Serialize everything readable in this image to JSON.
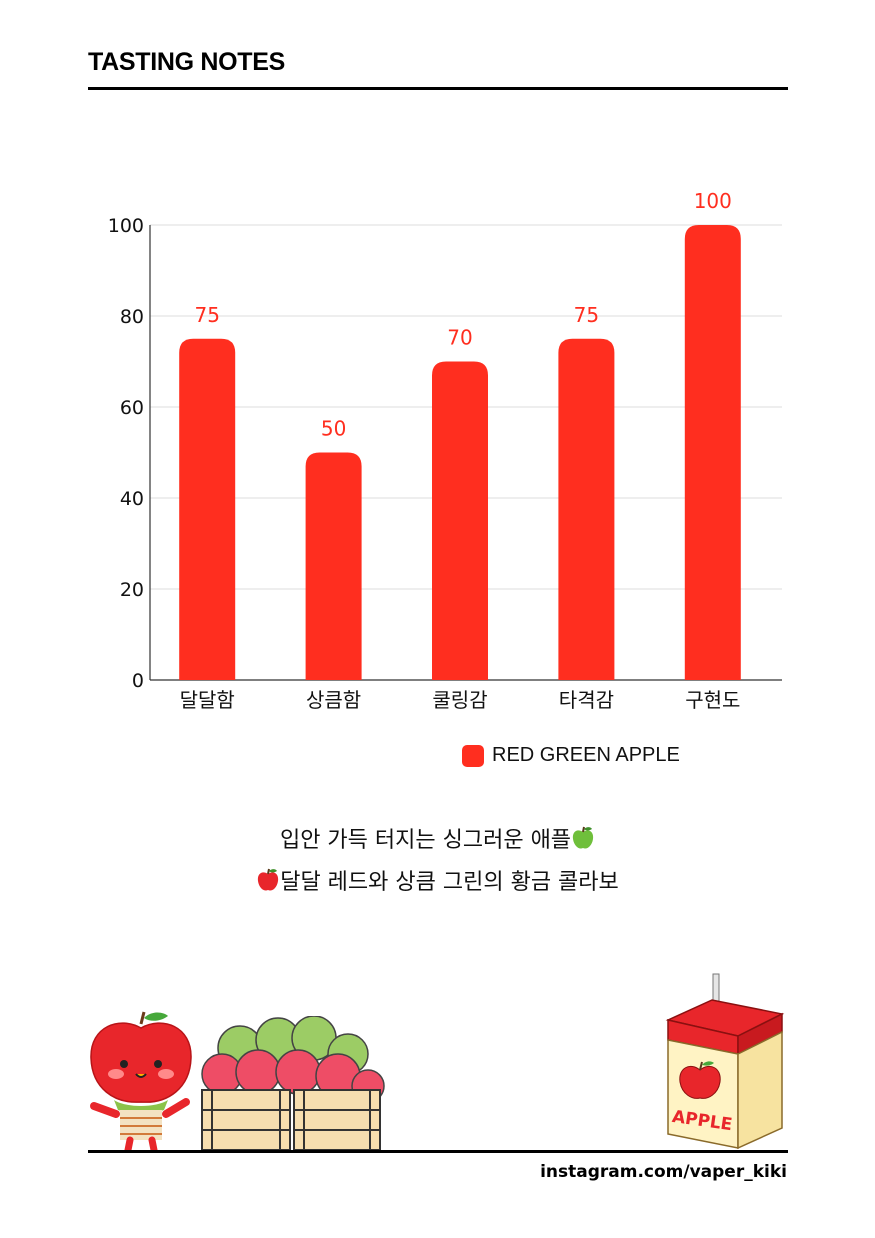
{
  "header": {
    "title": "TASTING NOTES"
  },
  "chart_data": {
    "type": "bar",
    "categories": [
      "달달함",
      "상큼함",
      "쿨링감",
      "타격감",
      "구현도"
    ],
    "series": [
      {
        "name": "RED GREEN APPLE",
        "values": [
          75,
          50,
          70,
          75,
          100
        ],
        "color": "#ff2e1f"
      }
    ],
    "ylim": [
      0,
      100
    ],
    "yticks": [
      0,
      20,
      40,
      60,
      80,
      100
    ],
    "data_labels": true,
    "grid": true,
    "legend_position": "bottom",
    "xlabel": "",
    "ylabel": "",
    "title": ""
  },
  "caption": {
    "line1": "입안 가득 터지는 싱그러운 애플",
    "line2": "달달 레드와 상큼 그린의 황금 콜라보"
  },
  "illustrations": {
    "juice_box_text": "APPLE"
  },
  "footer": {
    "handle": "instagram.com/vaper_kiki"
  },
  "colors": {
    "bar": "#ff2e1f",
    "label": "#ff2e1f",
    "grid": "#dcdcdc",
    "axis": "#333333"
  }
}
